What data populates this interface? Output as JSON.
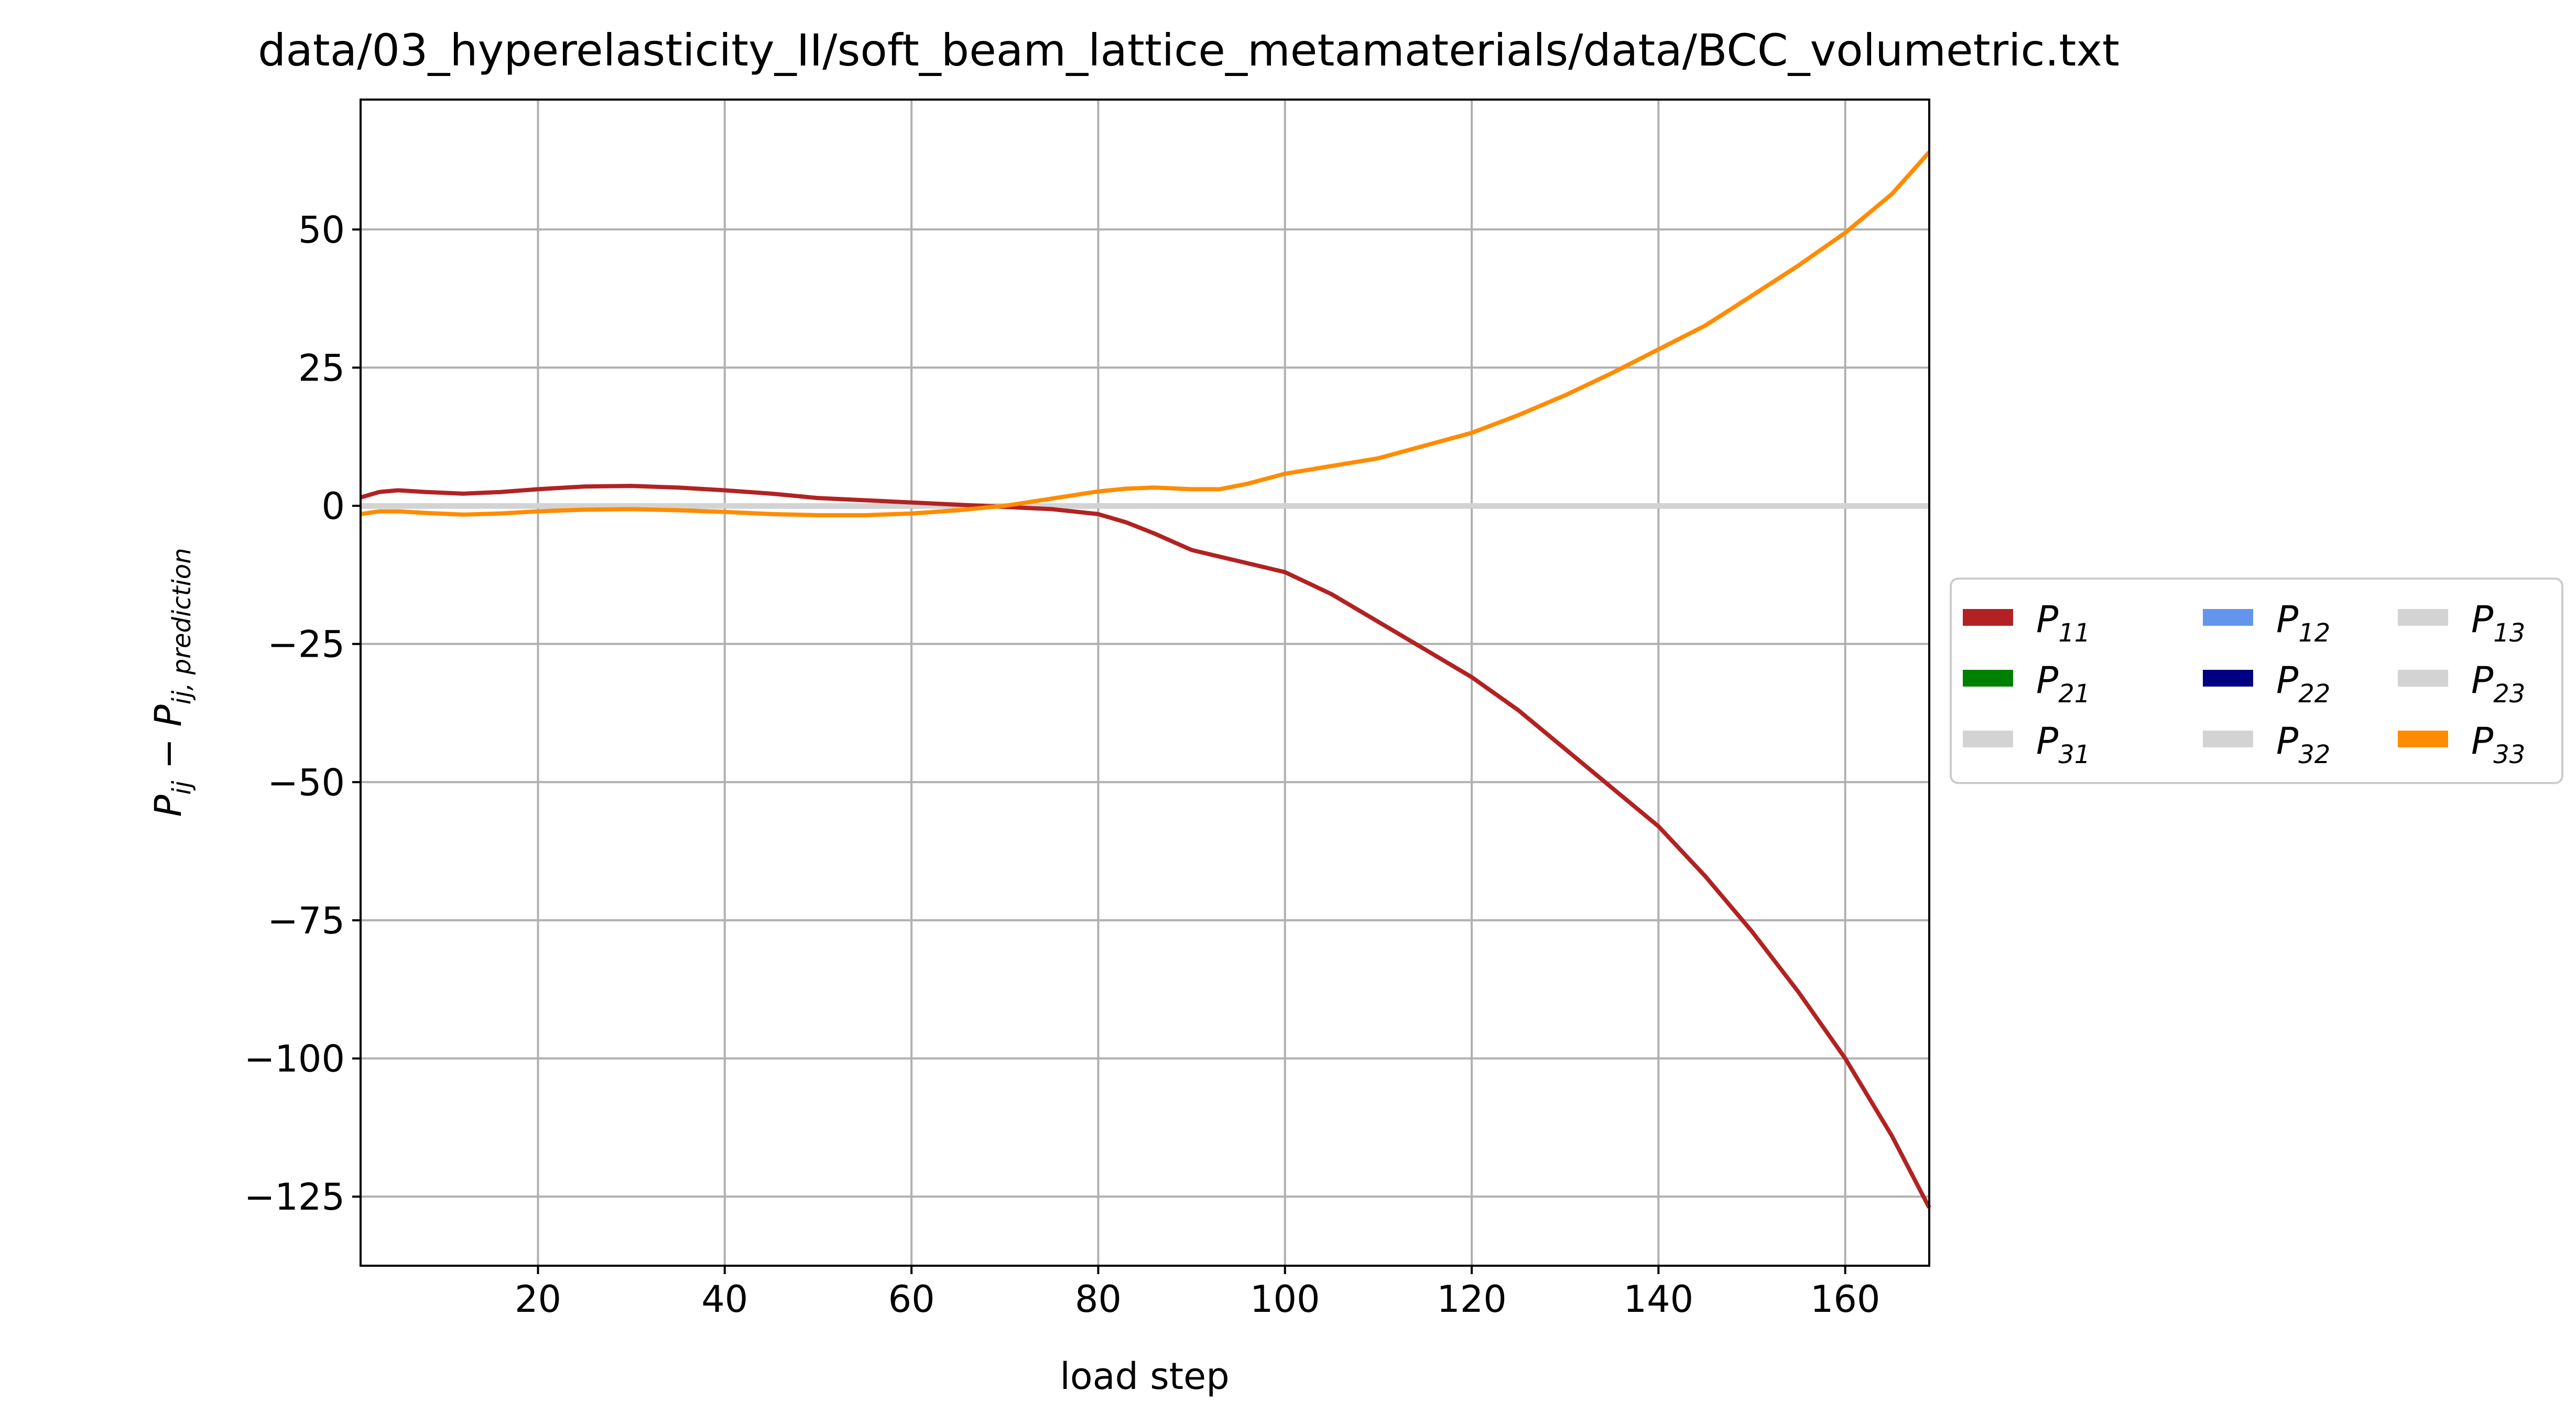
{
  "chart_data": {
    "type": "line",
    "title": "data/03_hyperelasticity_II/soft_beam_lattice_metamaterials/data/BCC_volumetric.txt",
    "xlabel": "load step",
    "ylabel": {
      "base": "P",
      "sub1": "ij",
      "minus": " − ",
      "base2": "P",
      "sub2": "ij, prediction"
    },
    "xlim": [
      1,
      169
    ],
    "ylim": [
      -137.5,
      73.5
    ],
    "xticks": [
      20,
      40,
      60,
      80,
      100,
      120,
      140,
      160
    ],
    "xtick_labels": [
      "20",
      "40",
      "60",
      "80",
      "100",
      "120",
      "140",
      "160"
    ],
    "yticks": [
      50,
      25,
      0,
      -25,
      -50,
      -75,
      -100,
      -125
    ],
    "ytick_labels": [
      "50",
      "25",
      "0",
      "−25",
      "−50",
      "−75",
      "−100",
      "−125"
    ],
    "grid": true,
    "legend_position": "outside right",
    "legend_columns": 3,
    "series": [
      {
        "name": "P",
        "sub": "11",
        "color": "#b22222",
        "x": [
          1,
          3,
          5,
          8,
          12,
          16,
          20,
          25,
          30,
          35,
          40,
          45,
          50,
          55,
          60,
          65,
          70,
          75,
          80,
          83,
          86,
          90,
          95,
          100,
          105,
          110,
          115,
          120,
          125,
          130,
          135,
          140,
          145,
          150,
          155,
          160,
          165,
          169
        ],
        "y": [
          1.5,
          2.5,
          2.8,
          2.5,
          2.2,
          2.5,
          3.0,
          3.5,
          3.6,
          3.3,
          2.8,
          2.2,
          1.4,
          1.0,
          0.6,
          0.2,
          -0.2,
          -0.6,
          -1.5,
          -3,
          -5,
          -8,
          -10,
          -12,
          -16,
          -21,
          -26,
          -31,
          -37,
          -44,
          -51,
          -58,
          -67,
          -77,
          -88,
          -100,
          -114,
          -127
        ]
      },
      {
        "name": "P",
        "sub": "12",
        "color": "#6495ed",
        "x": [
          1,
          169
        ],
        "y": [
          0,
          0
        ]
      },
      {
        "name": "P",
        "sub": "13",
        "color": "#d3d3d3",
        "x": [
          1,
          169
        ],
        "y": [
          0,
          0
        ]
      },
      {
        "name": "P",
        "sub": "21",
        "color": "#008000",
        "x": [
          1,
          169
        ],
        "y": [
          0,
          0
        ]
      },
      {
        "name": "P",
        "sub": "22",
        "color": "#000080",
        "x": [
          1,
          169
        ],
        "y": [
          0,
          0
        ]
      },
      {
        "name": "P",
        "sub": "23",
        "color": "#d3d3d3",
        "x": [
          1,
          169
        ],
        "y": [
          0,
          0
        ]
      },
      {
        "name": "P",
        "sub": "31",
        "color": "#d3d3d3",
        "x": [
          1,
          169
        ],
        "y": [
          0,
          0
        ]
      },
      {
        "name": "P",
        "sub": "32",
        "color": "#d3d3d3",
        "x": [
          1,
          169
        ],
        "y": [
          0,
          0
        ]
      },
      {
        "name": "P",
        "sub": "33",
        "color": "#ff8c00",
        "x": [
          1,
          3,
          5,
          8,
          12,
          16,
          20,
          25,
          30,
          35,
          40,
          45,
          50,
          55,
          60,
          65,
          70,
          75,
          80,
          83,
          86,
          90,
          93,
          96,
          100,
          105,
          110,
          115,
          120,
          125,
          130,
          135,
          140,
          145,
          150,
          155,
          160,
          165,
          169
        ],
        "y": [
          -1.5,
          -1.0,
          -1.0,
          -1.3,
          -1.6,
          -1.4,
          -1.0,
          -0.7,
          -0.6,
          -0.8,
          -1.1,
          -1.5,
          -1.7,
          -1.7,
          -1.4,
          -0.8,
          0.0,
          1.3,
          2.6,
          3.1,
          3.3,
          3.0,
          3.0,
          4.0,
          5.8,
          7.2,
          8.6,
          10.9,
          13.2,
          16.4,
          20.0,
          24.0,
          28.3,
          32.6,
          38.0,
          43.5,
          49.4,
          56.4,
          64.0
        ]
      }
    ],
    "legend_order": [
      0,
      3,
      6,
      1,
      4,
      7,
      2,
      5,
      8
    ]
  }
}
